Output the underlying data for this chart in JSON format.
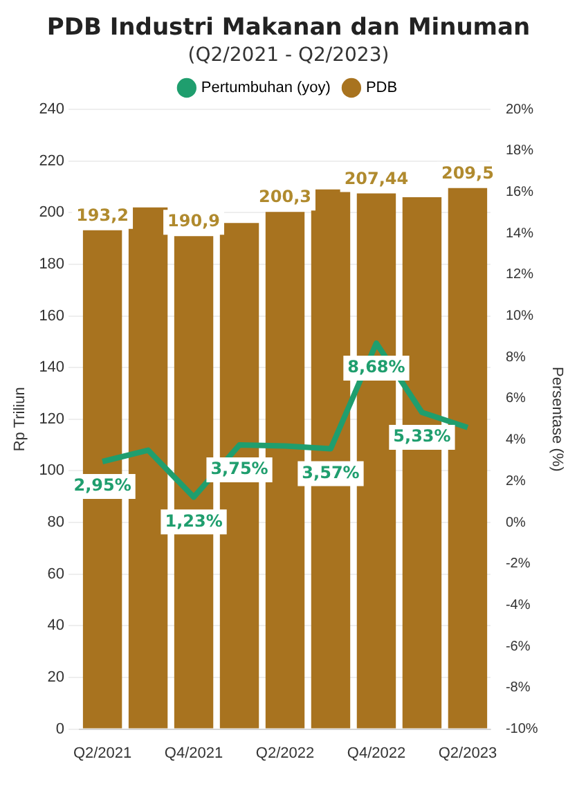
{
  "chart_data": {
    "type": "bar",
    "title": "PDB Industri Makanan dan Minuman",
    "subtitle": "(Q2/2021 - Q2/2023)",
    "ylabel": "Rp Triliun",
    "y2label": "Persentase (%)",
    "categories": [
      "Q2/2021",
      null,
      "Q4/2021",
      null,
      "Q2/2022",
      null,
      "Q4/2022",
      null,
      "Q2/2023"
    ],
    "series": [
      {
        "name": "Pertumbuhan (yoy)",
        "type": "line",
        "axis": "y2",
        "color": "#1f9e6e",
        "values": [
          2.95,
          3.5,
          1.23,
          3.75,
          3.7,
          3.57,
          8.68,
          5.33,
          4.6
        ],
        "value_labels": [
          "2,95%",
          null,
          "1,23%",
          "3,75%",
          null,
          "3,57%",
          "8,68%",
          "5,33%",
          null
        ]
      },
      {
        "name": "PDB",
        "color": "#a8731f",
        "values": [
          193.2,
          202,
          190.9,
          196,
          200.3,
          209,
          207.44,
          206,
          209.5
        ],
        "value_labels": [
          "193,2",
          null,
          "190,9",
          null,
          "200,3",
          null,
          "207,44",
          null,
          "209,5"
        ]
      }
    ],
    "ylim": [
      0,
      240
    ],
    "yticks": [
      0,
      20,
      40,
      60,
      80,
      100,
      120,
      140,
      160,
      180,
      200,
      220,
      240
    ],
    "y2lim": [
      -10,
      20
    ],
    "y2ticks": [
      {
        "value": -10,
        "label": "-10%"
      },
      {
        "value": -8,
        "label": "-8%"
      },
      {
        "value": -6,
        "label": "-6%"
      },
      {
        "value": -4,
        "label": "-4%"
      },
      {
        "value": -2,
        "label": "-2%"
      },
      {
        "value": 0,
        "label": "0%"
      },
      {
        "value": 2,
        "label": "2%"
      },
      {
        "value": 4,
        "label": "4%"
      },
      {
        "value": 6,
        "label": "6%"
      },
      {
        "value": 8,
        "label": "8%"
      },
      {
        "value": 10,
        "label": "10%"
      },
      {
        "value": 12,
        "label": "12%"
      },
      {
        "value": 14,
        "label": "14%"
      },
      {
        "value": 16,
        "label": "16%"
      },
      {
        "value": 18,
        "label": "18%"
      },
      {
        "value": 20,
        "label": "20%"
      }
    ],
    "grid": "y",
    "legend": "top",
    "marker": "none",
    "line_style": "solid"
  }
}
